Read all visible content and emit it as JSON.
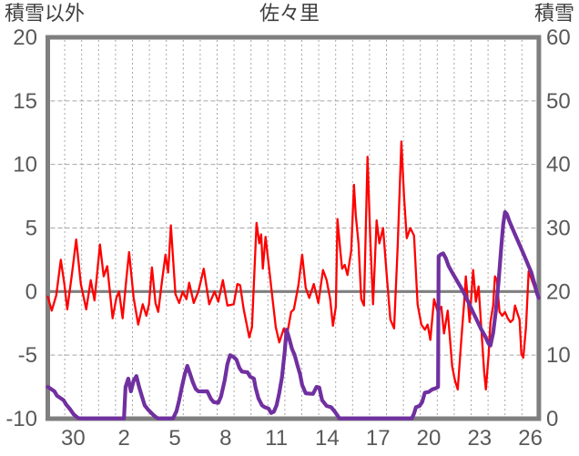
{
  "chart_data": {
    "type": "line",
    "title": "佐々里",
    "y_left": {
      "title": "積雪以外",
      "min": -10,
      "max": 20,
      "ticks": [
        20,
        15,
        10,
        5,
        0,
        -5,
        -10
      ]
    },
    "y_right": {
      "title": "積雪",
      "min": 0,
      "max": 60,
      "ticks": [
        60,
        50,
        40,
        30,
        20,
        10,
        0
      ]
    },
    "x_axis": {
      "days_total": 29,
      "gridline_every_day": true,
      "tick_labels": [
        {
          "label": "30",
          "day": 1
        },
        {
          "label": "2",
          "day": 4
        },
        {
          "label": "5",
          "day": 7
        },
        {
          "label": "8",
          "day": 10
        },
        {
          "label": "11",
          "day": 13
        },
        {
          "label": "14",
          "day": 16
        },
        {
          "label": "17",
          "day": 19
        },
        {
          "label": "20",
          "day": 22
        },
        {
          "label": "23",
          "day": 25
        },
        {
          "label": "26",
          "day": 28
        }
      ]
    },
    "grid": {
      "h_lines_at_left_values": [
        15,
        10,
        5,
        -5
      ],
      "zero_line_at": 0
    },
    "colors": {
      "frame": "#7f7f7f",
      "zero_line": "#7f7f7f",
      "gridline": "#a6a6a6",
      "tick_text": "#595959",
      "title_text": "#3f3f3f",
      "red_series": "#ff0000",
      "purple_series": "#7030a0"
    },
    "series": [
      {
        "name": "積雪以外",
        "axis": "left",
        "color": "#ff0000",
        "width": 2.3,
        "points": [
          [
            0.0,
            -0.4
          ],
          [
            0.23,
            -1.5
          ],
          [
            0.5,
            -0.3
          ],
          [
            0.77,
            2.5
          ],
          [
            0.98,
            0.6
          ],
          [
            1.15,
            -1.4
          ],
          [
            1.41,
            1.2
          ],
          [
            1.68,
            4.1
          ],
          [
            1.95,
            0.6
          ],
          [
            2.27,
            -1.4
          ],
          [
            2.54,
            0.9
          ],
          [
            2.76,
            -0.7
          ],
          [
            3.08,
            3.7
          ],
          [
            3.3,
            1.2
          ],
          [
            3.51,
            2.0
          ],
          [
            3.83,
            -2.1
          ],
          [
            4.05,
            -0.5
          ],
          [
            4.21,
            0.0
          ],
          [
            4.42,
            -2.1
          ],
          [
            4.64,
            1.0
          ],
          [
            4.8,
            3.1
          ],
          [
            5.07,
            -0.5
          ],
          [
            5.34,
            -2.6
          ],
          [
            5.61,
            -1.0
          ],
          [
            5.82,
            -1.9
          ],
          [
            5.98,
            -1.0
          ],
          [
            6.15,
            1.9
          ],
          [
            6.36,
            -0.9
          ],
          [
            6.52,
            -1.6
          ],
          [
            6.74,
            0.8
          ],
          [
            6.95,
            2.9
          ],
          [
            7.11,
            1.5
          ],
          [
            7.27,
            5.2
          ],
          [
            7.54,
            -0.2
          ],
          [
            7.76,
            -0.9
          ],
          [
            7.97,
            0.0
          ],
          [
            8.19,
            -0.6
          ],
          [
            8.35,
            0.7
          ],
          [
            8.62,
            -0.9
          ],
          [
            8.89,
            0.0
          ],
          [
            9.21,
            1.8
          ],
          [
            9.53,
            -1.0
          ],
          [
            9.85,
            0.0
          ],
          [
            10.07,
            -0.8
          ],
          [
            10.34,
            0.9
          ],
          [
            10.61,
            -1.1
          ],
          [
            10.98,
            -1.0
          ],
          [
            11.2,
            0.6
          ],
          [
            11.36,
            0.5
          ],
          [
            11.57,
            -1.4
          ],
          [
            11.9,
            -3.6
          ],
          [
            12.06,
            -2.8
          ],
          [
            12.33,
            5.4
          ],
          [
            12.49,
            3.8
          ],
          [
            12.6,
            4.5
          ],
          [
            12.7,
            1.8
          ],
          [
            12.86,
            4.3
          ],
          [
            13.08,
            1.7
          ],
          [
            13.3,
            -0.9
          ],
          [
            13.46,
            -2.8
          ],
          [
            13.67,
            -4.0
          ],
          [
            13.94,
            -2.9
          ],
          [
            14.1,
            -3.6
          ],
          [
            14.37,
            -1.6
          ],
          [
            14.53,
            -1.4
          ],
          [
            14.8,
            0.5
          ],
          [
            15.02,
            2.9
          ],
          [
            15.23,
            0.3
          ],
          [
            15.44,
            -0.5
          ],
          [
            15.71,
            0.6
          ],
          [
            15.98,
            -0.9
          ],
          [
            16.25,
            1.7
          ],
          [
            16.47,
            0.9
          ],
          [
            16.68,
            -0.6
          ],
          [
            16.84,
            -2.7
          ],
          [
            17.01,
            -1.2
          ],
          [
            17.11,
            5.7
          ],
          [
            17.27,
            3.3
          ],
          [
            17.38,
            1.8
          ],
          [
            17.54,
            2.1
          ],
          [
            17.7,
            1.3
          ],
          [
            17.92,
            3.2
          ],
          [
            18.08,
            8.4
          ],
          [
            18.19,
            6.0
          ],
          [
            18.35,
            3.8
          ],
          [
            18.51,
            -0.6
          ],
          [
            18.67,
            -1.1
          ],
          [
            18.88,
            10.6
          ],
          [
            19.05,
            4.0
          ],
          [
            19.21,
            -1.0
          ],
          [
            19.42,
            5.6
          ],
          [
            19.58,
            3.8
          ],
          [
            19.8,
            5.0
          ],
          [
            20.02,
            1.2
          ],
          [
            20.23,
            -2.2
          ],
          [
            20.45,
            -2.9
          ],
          [
            20.66,
            3.5
          ],
          [
            20.88,
            11.8
          ],
          [
            21.04,
            7.5
          ],
          [
            21.2,
            4.2
          ],
          [
            21.41,
            5.0
          ],
          [
            21.63,
            4.4
          ],
          [
            21.84,
            -1.0
          ],
          [
            22.06,
            -2.6
          ],
          [
            22.27,
            -3.0
          ],
          [
            22.43,
            -2.6
          ],
          [
            22.59,
            -3.8
          ],
          [
            22.81,
            -0.6
          ],
          [
            23.02,
            -1.6
          ],
          [
            23.24,
            -1.2
          ],
          [
            23.4,
            -3.3
          ],
          [
            23.62,
            -1.5
          ],
          [
            23.88,
            -5.9
          ],
          [
            24.05,
            -7.0
          ],
          [
            24.21,
            -7.7
          ],
          [
            24.42,
            -3.8
          ],
          [
            24.58,
            -1.0
          ],
          [
            24.69,
            1.2
          ],
          [
            24.91,
            -2.4
          ],
          [
            25.12,
            1.7
          ],
          [
            25.28,
            -0.8
          ],
          [
            25.44,
            0.4
          ],
          [
            25.61,
            -3.0
          ],
          [
            25.77,
            -6.3
          ],
          [
            25.87,
            -7.7
          ],
          [
            26.03,
            -5.0
          ],
          [
            26.14,
            -2.4
          ],
          [
            26.3,
            -1.1
          ],
          [
            26.41,
            1.2
          ],
          [
            26.52,
            0.9
          ],
          [
            26.68,
            -1.6
          ],
          [
            26.84,
            -1.9
          ],
          [
            27.0,
            -1.6
          ],
          [
            27.16,
            -2.1
          ],
          [
            27.32,
            -2.4
          ],
          [
            27.48,
            -2.2
          ],
          [
            27.59,
            -1.1
          ],
          [
            27.76,
            -1.8
          ],
          [
            27.86,
            -2.2
          ],
          [
            27.97,
            -4.9
          ],
          [
            28.08,
            -5.2
          ],
          [
            28.24,
            -2.8
          ],
          [
            28.4,
            1.6
          ],
          [
            28.56,
            1.0
          ],
          [
            28.72,
            0.4
          ],
          [
            28.88,
            -0.2
          ]
        ]
      },
      {
        "name": "積雪",
        "axis": "right",
        "color": "#7030a0",
        "width": 4.2,
        "points": [
          [
            0.0,
            5.0
          ],
          [
            0.18,
            4.7
          ],
          [
            0.39,
            4.3
          ],
          [
            0.55,
            3.6
          ],
          [
            0.72,
            3.3
          ],
          [
            0.93,
            2.9
          ],
          [
            1.09,
            2.2
          ],
          [
            1.31,
            1.5
          ],
          [
            1.52,
            0.7
          ],
          [
            1.79,
            0.1
          ],
          [
            2.0,
            0.05
          ],
          [
            4.5,
            0.05
          ],
          [
            4.59,
            5.0
          ],
          [
            4.75,
            6.3
          ],
          [
            4.91,
            4.3
          ],
          [
            5.07,
            6.0
          ],
          [
            5.23,
            6.7
          ],
          [
            5.39,
            5.0
          ],
          [
            5.55,
            3.6
          ],
          [
            5.72,
            2.1
          ],
          [
            5.93,
            1.4
          ],
          [
            6.15,
            0.8
          ],
          [
            6.36,
            0.3
          ],
          [
            6.5,
            0.05
          ],
          [
            7.4,
            0.05
          ],
          [
            7.6,
            1.2
          ],
          [
            7.76,
            2.9
          ],
          [
            7.92,
            5.0
          ],
          [
            8.08,
            6.9
          ],
          [
            8.24,
            8.3
          ],
          [
            8.4,
            7.1
          ],
          [
            8.57,
            5.7
          ],
          [
            8.73,
            4.7
          ],
          [
            8.89,
            4.3
          ],
          [
            9.42,
            4.3
          ],
          [
            9.64,
            3.1
          ],
          [
            9.8,
            2.6
          ],
          [
            10.07,
            2.5
          ],
          [
            10.23,
            3.5
          ],
          [
            10.45,
            6.1
          ],
          [
            10.61,
            8.6
          ],
          [
            10.77,
            10.0
          ],
          [
            10.98,
            9.7
          ],
          [
            11.14,
            9.3
          ],
          [
            11.31,
            8.0
          ],
          [
            11.47,
            7.4
          ],
          [
            11.79,
            7.3
          ],
          [
            11.95,
            6.6
          ],
          [
            12.17,
            6.3
          ],
          [
            12.27,
            4.9
          ],
          [
            12.44,
            3.2
          ],
          [
            12.65,
            2.1
          ],
          [
            12.81,
            1.8
          ],
          [
            13.03,
            1.6
          ],
          [
            13.19,
            0.9
          ],
          [
            13.35,
            1.1
          ],
          [
            13.51,
            2.1
          ],
          [
            13.67,
            4.1
          ],
          [
            13.83,
            6.5
          ],
          [
            13.99,
            10.5
          ],
          [
            14.1,
            14.0
          ],
          [
            14.26,
            12.6
          ],
          [
            14.42,
            11.0
          ],
          [
            14.58,
            10.0
          ],
          [
            14.74,
            8.4
          ],
          [
            14.9,
            7.0
          ],
          [
            15.02,
            5.3
          ],
          [
            15.23,
            4.0
          ],
          [
            15.66,
            3.9
          ],
          [
            15.87,
            5.0
          ],
          [
            16.03,
            4.9
          ],
          [
            16.2,
            2.9
          ],
          [
            16.47,
            2.0
          ],
          [
            16.73,
            1.8
          ],
          [
            16.95,
            1.1
          ],
          [
            17.11,
            0.5
          ],
          [
            17.22,
            0.05
          ],
          [
            21.5,
            0.05
          ],
          [
            21.63,
            0.8
          ],
          [
            21.74,
            1.8
          ],
          [
            21.95,
            2.0
          ],
          [
            22.11,
            2.6
          ],
          [
            22.27,
            4.1
          ],
          [
            22.49,
            4.2
          ],
          [
            22.7,
            4.6
          ],
          [
            22.92,
            4.8
          ],
          [
            23.05,
            5.0
          ],
          [
            23.08,
            25.5
          ],
          [
            23.19,
            25.8
          ],
          [
            23.35,
            26.0
          ],
          [
            23.51,
            25.2
          ],
          [
            23.67,
            24.0
          ],
          [
            23.88,
            23.0
          ],
          [
            24.1,
            22.0
          ],
          [
            24.32,
            21.0
          ],
          [
            24.53,
            20.0
          ],
          [
            24.75,
            18.8
          ],
          [
            24.96,
            17.6
          ],
          [
            25.18,
            16.4
          ],
          [
            25.39,
            15.2
          ],
          [
            25.61,
            14.0
          ],
          [
            25.82,
            13.0
          ],
          [
            26.03,
            11.8
          ],
          [
            26.14,
            11.5
          ],
          [
            26.3,
            13.5
          ],
          [
            26.46,
            17.0
          ],
          [
            26.62,
            21.5
          ],
          [
            26.78,
            27.0
          ],
          [
            26.89,
            30.5
          ],
          [
            27.0,
            32.5
          ],
          [
            27.11,
            32.2
          ],
          [
            27.27,
            31.0
          ],
          [
            27.43,
            30.0
          ],
          [
            27.59,
            29.0
          ],
          [
            27.76,
            28.0
          ],
          [
            27.92,
            27.0
          ],
          [
            28.08,
            26.0
          ],
          [
            28.24,
            25.0
          ],
          [
            28.4,
            24.0
          ],
          [
            28.56,
            23.0
          ],
          [
            28.66,
            22.0
          ],
          [
            28.77,
            21.0
          ],
          [
            28.88,
            19.8
          ],
          [
            28.99,
            19.0
          ]
        ]
      }
    ]
  }
}
